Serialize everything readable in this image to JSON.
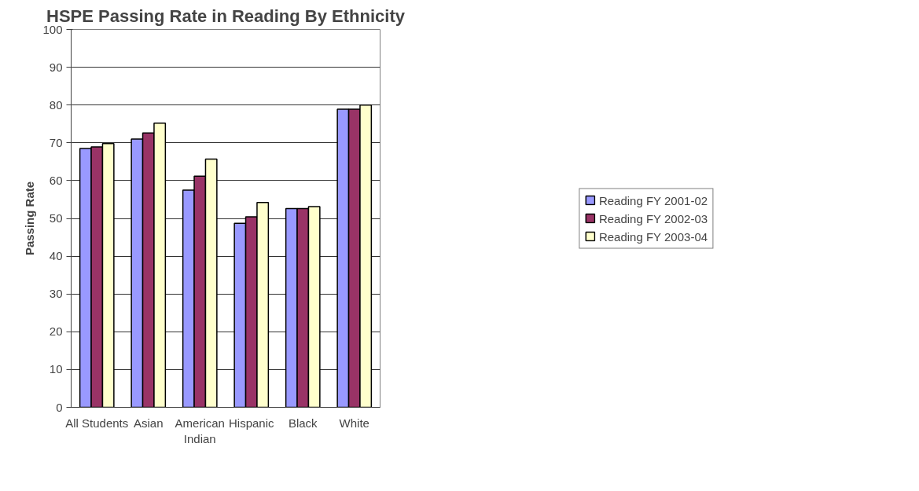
{
  "chart_data": {
    "type": "bar",
    "title": "HSPE Passing Rate in Reading By Ethnicity",
    "ylabel": "Passing Rate",
    "categories": [
      "All Students",
      "Asian",
      "American\nIndian",
      "Hispanic",
      "Black",
      "White"
    ],
    "series": [
      {
        "name": "Reading FY 2001-02",
        "color": "#9999ff",
        "values": [
          68.5,
          71.0,
          57.5,
          48.7,
          52.6,
          78.9
        ]
      },
      {
        "name": "Reading FY 2002-03",
        "color": "#993366",
        "values": [
          68.9,
          72.6,
          61.2,
          50.4,
          52.6,
          78.9
        ]
      },
      {
        "name": "Reading FY 2003-04",
        "color": "#ffffcc",
        "values": [
          69.8,
          75.2,
          65.7,
          54.2,
          53.1,
          80.0
        ]
      }
    ],
    "ylim": [
      0,
      100
    ],
    "yticks": [
      0,
      10,
      20,
      30,
      40,
      50,
      60,
      70,
      80,
      90,
      100
    ],
    "grid": "y",
    "legend": "right"
  }
}
